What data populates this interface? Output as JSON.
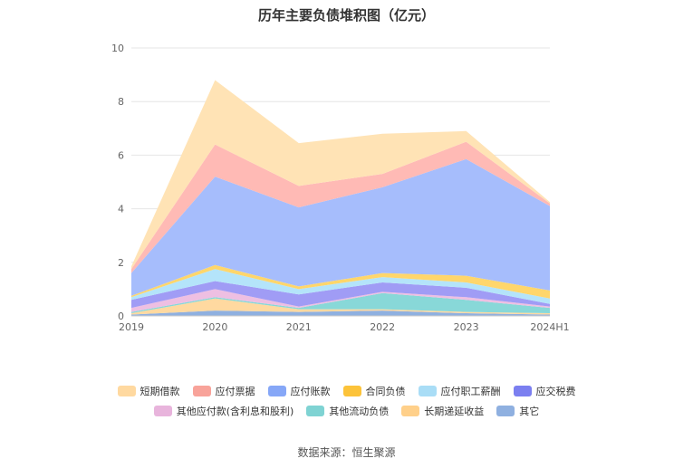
{
  "chart_data": {
    "type": "area",
    "stacked": true,
    "title": "历年主要负债堆积图（亿元）",
    "categories": [
      "2019",
      "2020",
      "2021",
      "2022",
      "2023",
      "2024H1"
    ],
    "ylim": [
      0,
      10
    ],
    "yticks": [
      "0",
      "2",
      "4",
      "6",
      "8",
      "10"
    ],
    "grid": true,
    "legend_position": "bottom",
    "series": [
      {
        "name": "其它",
        "color": "#8fb0e0",
        "values": [
          0.05,
          0.2,
          0.15,
          0.2,
          0.1,
          0.05
        ]
      },
      {
        "name": "长期递延收益",
        "color": "#ffd9a0",
        "values": [
          0.05,
          0.45,
          0.1,
          0.05,
          0.05,
          0.05
        ]
      },
      {
        "name": "其他流动负债",
        "color": "#88d8d8",
        "values": [
          0.05,
          0.05,
          0.05,
          0.6,
          0.45,
          0.2
        ]
      },
      {
        "name": "其他应付款(含利息和股利)",
        "color": "#eebfe2",
        "values": [
          0.15,
          0.3,
          0.05,
          0.05,
          0.1,
          0.05
        ]
      },
      {
        "name": "应交税费",
        "color": "#a09cf5",
        "values": [
          0.3,
          0.3,
          0.45,
          0.35,
          0.35,
          0.1
        ]
      },
      {
        "name": "应付职工薪酬",
        "color": "#b4e4fa",
        "values": [
          0.1,
          0.45,
          0.2,
          0.2,
          0.2,
          0.2
        ]
      },
      {
        "name": "合同负债",
        "color": "#ffd66b",
        "values": [
          0.05,
          0.15,
          0.1,
          0.15,
          0.25,
          0.3
        ]
      },
      {
        "name": "应付账款",
        "color": "#a6bdfc",
        "values": [
          0.85,
          3.3,
          2.95,
          3.2,
          4.35,
          3.15
        ]
      },
      {
        "name": "应付票据",
        "color": "#ffbab5",
        "values": [
          0.15,
          1.2,
          0.8,
          0.5,
          0.65,
          0.1
        ]
      },
      {
        "name": "短期借款",
        "color": "#ffe3b5",
        "values": [
          0.1,
          2.4,
          1.6,
          1.5,
          0.4,
          0.05
        ]
      }
    ],
    "legend": [
      {
        "name": "短期借款",
        "color": "#ffd9a0"
      },
      {
        "name": "应付票据",
        "color": "#f8a39a"
      },
      {
        "name": "应付账款",
        "color": "#86a7f7"
      },
      {
        "name": "合同负债",
        "color": "#fcc33a"
      },
      {
        "name": "应付职工薪酬",
        "color": "#a9ddf6"
      },
      {
        "name": "应交税费",
        "color": "#7b7ff0"
      },
      {
        "name": "其他应付款(含利息和股利)",
        "color": "#e8b4dc"
      },
      {
        "name": "其他流动负债",
        "color": "#7fd3d3"
      },
      {
        "name": "长期递延收益",
        "color": "#ffd08a"
      },
      {
        "name": "其它",
        "color": "#8fb0e0"
      }
    ],
    "source": "数据来源：恒生聚源"
  }
}
